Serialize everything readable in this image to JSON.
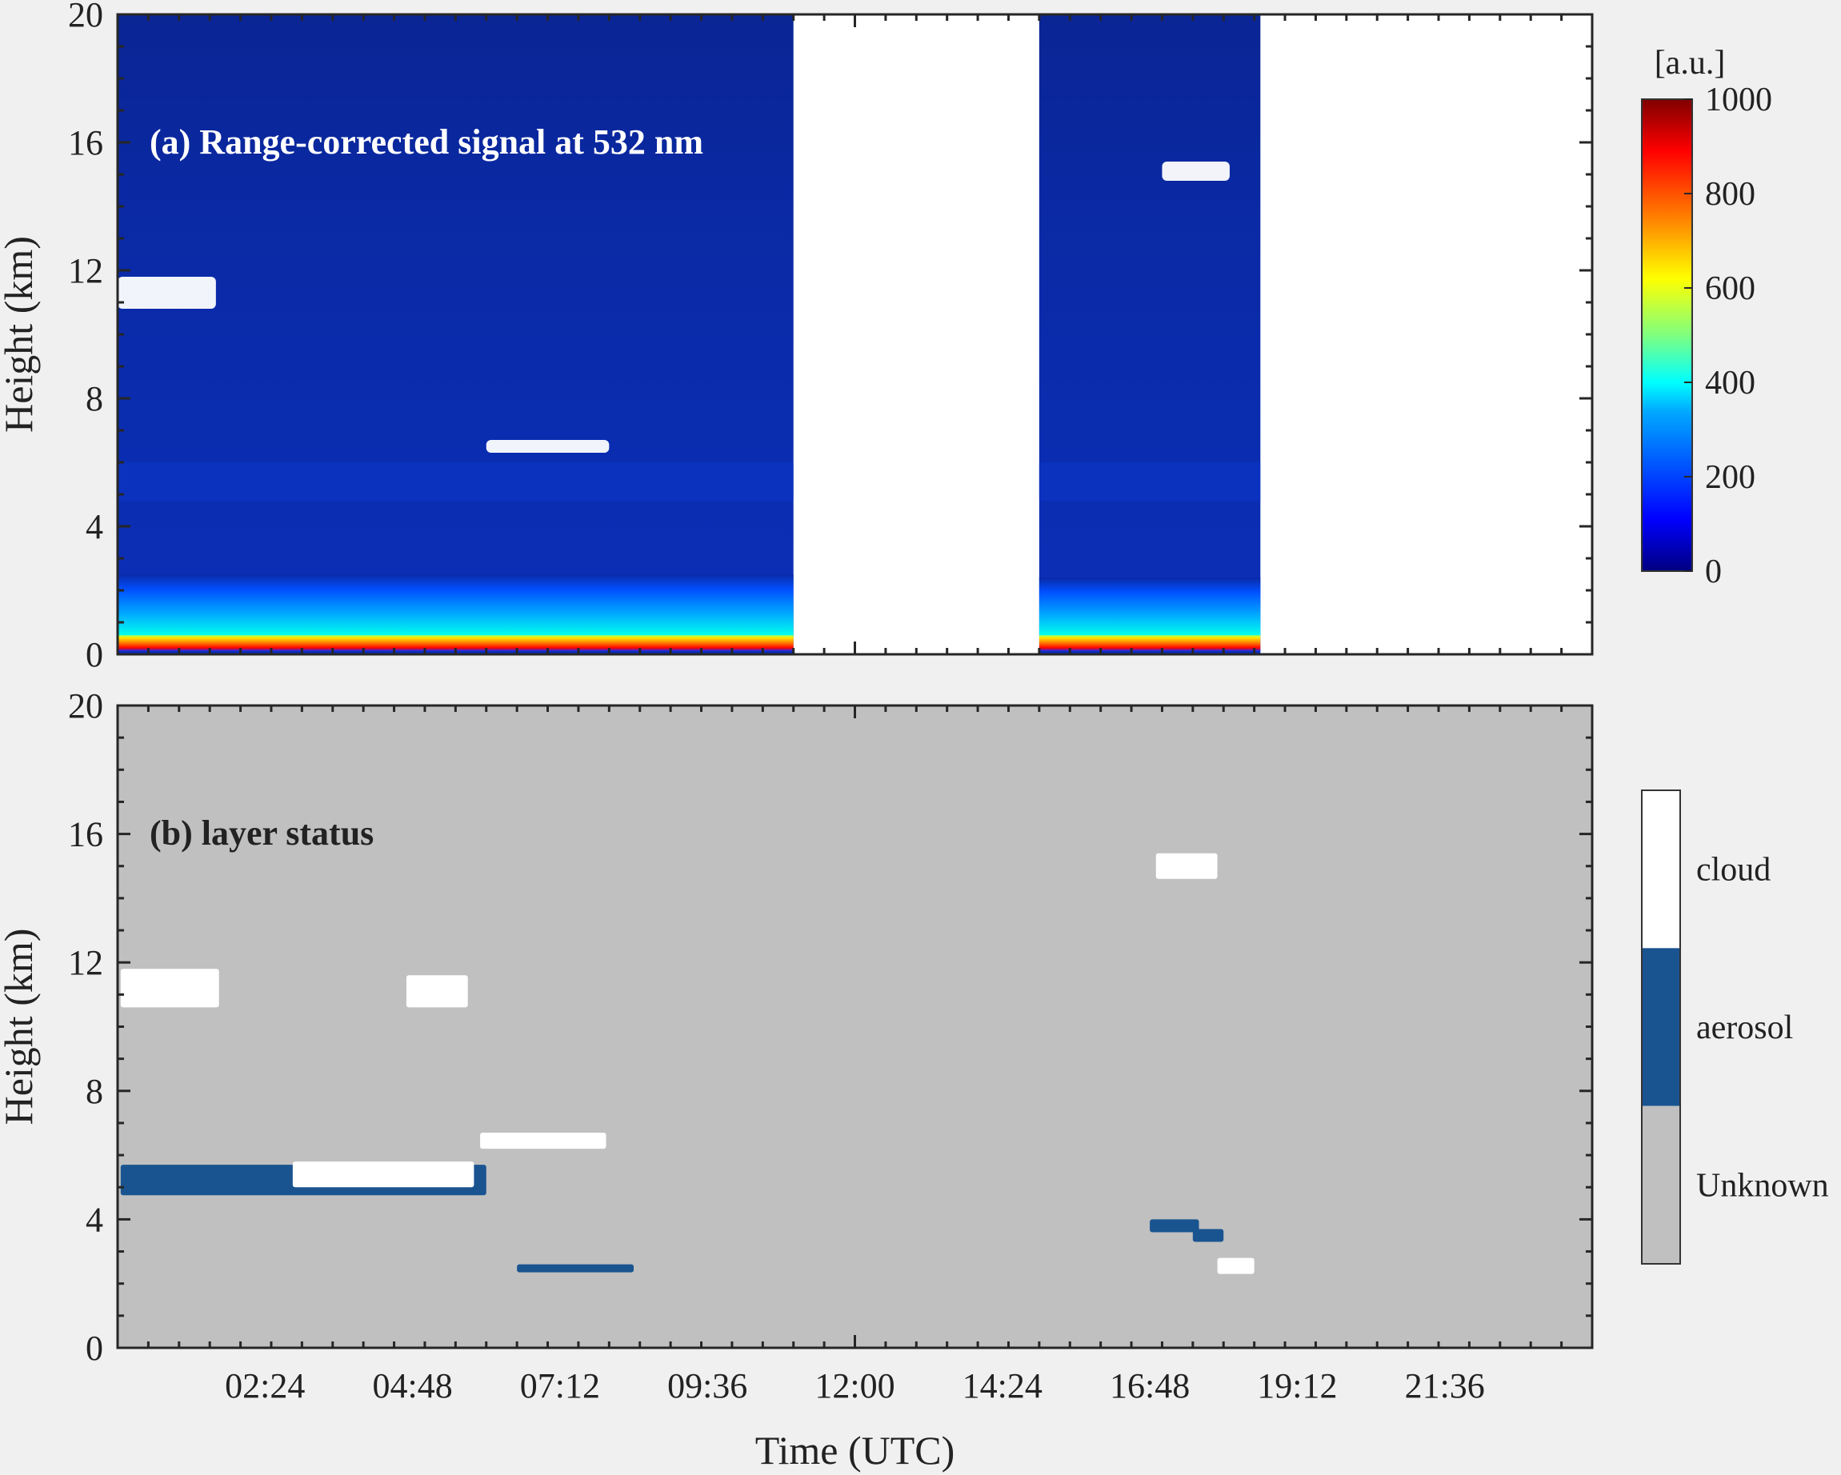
{
  "figure": {
    "xlabel": "Time (UTC)",
    "x_tick_labels": [
      "02:24",
      "04:48",
      "07:12",
      "09:36",
      "12:00",
      "14:24",
      "16:48",
      "19:12",
      "21:36"
    ]
  },
  "chart_data": [
    {
      "type": "heatmap",
      "title": "(a) Range-corrected signal at 532 nm",
      "xlabel": "",
      "ylabel": "Height (km)",
      "x_unit": "hours UTC",
      "xlim": [
        0,
        24
      ],
      "ylim": [
        0,
        20
      ],
      "y_ticks": [
        0,
        4,
        8,
        12,
        16,
        20
      ],
      "colorbar": {
        "label": "[a.u.]",
        "range": [
          0,
          1000
        ],
        "ticks": [
          0,
          200,
          400,
          600,
          800,
          1000
        ],
        "colormap": [
          "#00007f",
          "#0000ff",
          "#00aaff",
          "#00ffff",
          "#7fff7f",
          "#ffff00",
          "#ff7f00",
          "#ff0000",
          "#7f0000"
        ]
      },
      "data_gaps_hours": [
        [
          11.0,
          15.0
        ],
        [
          18.6,
          24.0
        ]
      ],
      "background_color": "#0a2aa8",
      "features": [
        {
          "name": "near-surface strong signal",
          "x": [
            0.0,
            11.0
          ],
          "y": [
            0.1,
            0.6
          ]
        },
        {
          "name": "boundary layer",
          "x": [
            0.0,
            11.0
          ],
          "y": [
            0.6,
            2.5
          ]
        },
        {
          "name": "near-surface strong signal (afternoon)",
          "x": [
            15.0,
            18.6
          ],
          "y": [
            0.1,
            0.6
          ]
        },
        {
          "name": "boundary layer (afternoon)",
          "x": [
            15.0,
            18.6
          ],
          "y": [
            0.6,
            2.4
          ]
        },
        {
          "name": "cirrus",
          "x": [
            0.0,
            1.6
          ],
          "y": [
            10.8,
            11.8
          ]
        },
        {
          "name": "mid-level cloud",
          "x": [
            6.0,
            8.0
          ],
          "y": [
            6.3,
            6.7
          ]
        },
        {
          "name": "high cirrus",
          "x": [
            17.0,
            18.1
          ],
          "y": [
            14.8,
            15.4
          ]
        }
      ]
    },
    {
      "type": "heatmap",
      "title": "(b) layer status",
      "xlabel": "Time (UTC)",
      "ylabel": "Height (km)",
      "x_unit": "hours UTC",
      "xlim": [
        0,
        24
      ],
      "ylim": [
        0,
        20
      ],
      "y_ticks": [
        0,
        4,
        8,
        12,
        16,
        20
      ],
      "classes": [
        {
          "name": "cloud",
          "color": "#ffffff"
        },
        {
          "name": "aerosol",
          "color": "#1a5490"
        },
        {
          "name": "Unknown",
          "color": "#c0c0c0"
        }
      ],
      "layers": [
        {
          "class": "cloud",
          "x": [
            0.05,
            1.65
          ],
          "y": [
            10.6,
            11.8
          ]
        },
        {
          "class": "cloud",
          "x": [
            4.7,
            5.7
          ],
          "y": [
            10.6,
            11.6
          ]
        },
        {
          "class": "aerosol",
          "x": [
            0.05,
            6.0
          ],
          "y": [
            4.75,
            5.7
          ]
        },
        {
          "class": "cloud",
          "x": [
            2.85,
            5.8
          ],
          "y": [
            5.0,
            5.8
          ]
        },
        {
          "class": "cloud",
          "x": [
            5.9,
            7.95
          ],
          "y": [
            6.2,
            6.7
          ]
        },
        {
          "class": "aerosol",
          "x": [
            6.5,
            8.4
          ],
          "y": [
            2.35,
            2.6
          ]
        },
        {
          "class": "cloud",
          "x": [
            16.9,
            17.9
          ],
          "y": [
            14.6,
            15.4
          ]
        },
        {
          "class": "aerosol",
          "x": [
            16.8,
            17.6
          ],
          "y": [
            3.6,
            4.0
          ]
        },
        {
          "class": "aerosol",
          "x": [
            17.5,
            18.0
          ],
          "y": [
            3.3,
            3.7
          ]
        },
        {
          "class": "cloud",
          "x": [
            17.9,
            18.5
          ],
          "y": [
            2.3,
            2.8
          ]
        }
      ]
    }
  ]
}
